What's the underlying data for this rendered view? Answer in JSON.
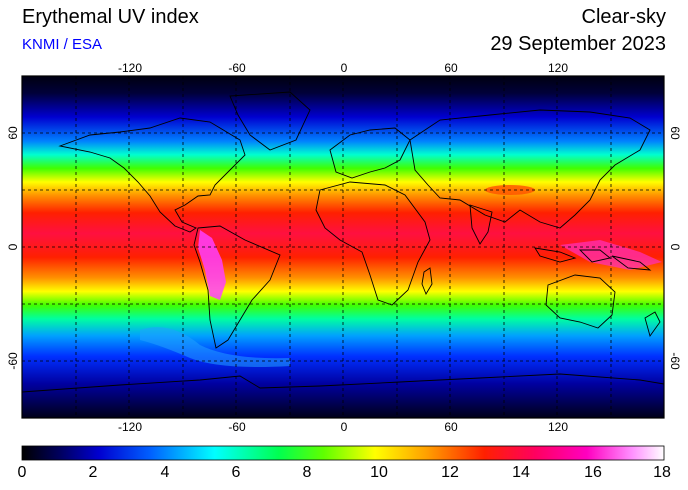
{
  "header": {
    "title": "Erythemal UV index",
    "source": "KNMI / ESA",
    "condition": "Clear-sky",
    "date": "29 September 2023"
  },
  "axes": {
    "lon_ticks": [
      "-120",
      "-60",
      "0",
      "60",
      "120"
    ],
    "lat_ticks": [
      "60",
      "0",
      "-60"
    ]
  },
  "colorbar": {
    "labels": [
      "0",
      "2",
      "4",
      "6",
      "8",
      "10",
      "12",
      "14",
      "16",
      "18"
    ],
    "range": [
      0,
      18
    ]
  },
  "colors": {
    "stops": [
      "#000000",
      "#00007a",
      "#0000ff",
      "#00a0ff",
      "#00ffff",
      "#00ff60",
      "#60ff00",
      "#ffff00",
      "#ffa000",
      "#ff2000",
      "#ff0060",
      "#ff00c0",
      "#ff80ff",
      "#ffffff"
    ]
  }
}
